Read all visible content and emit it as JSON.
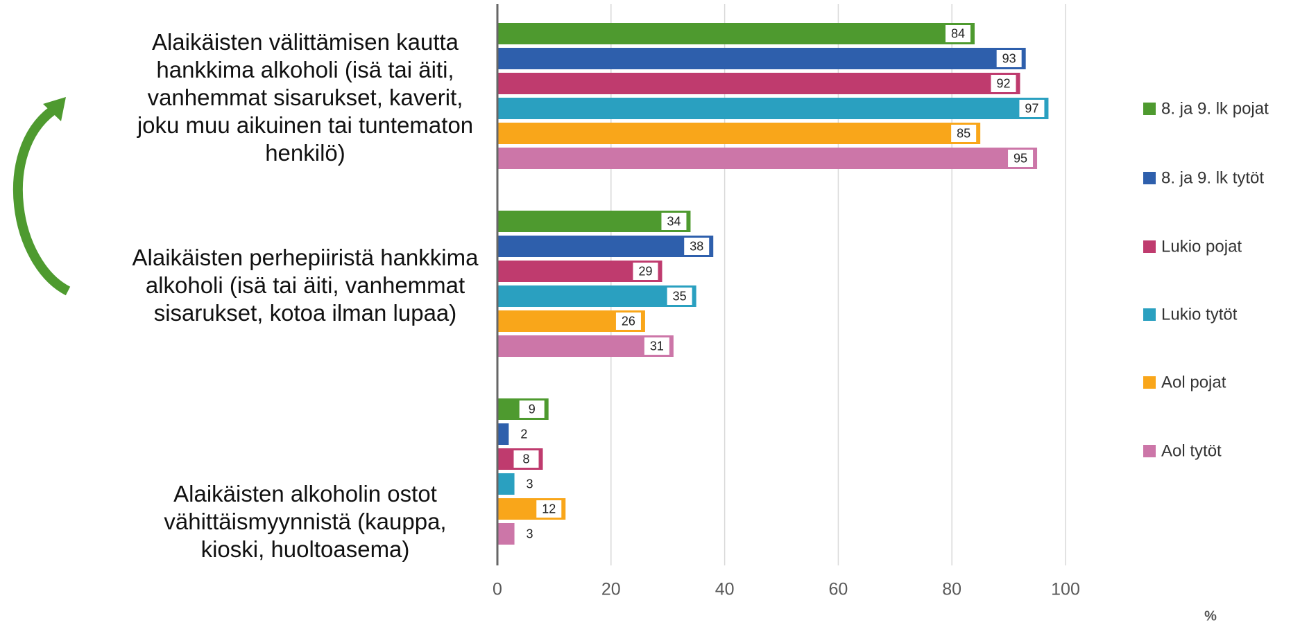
{
  "chart_data": {
    "type": "bar",
    "orientation": "horizontal",
    "categories": [
      "Alaikäisten välittämisen kautta hankkima alkoholi (isä tai äiti, vanhemmat sisarukset, kaverit, joku muu aikuinen tai tuntematon henkilö)",
      "Alaikäisten perhepiiristä hankkima alkoholi (isä tai äiti, vanhemmat sisarukset, kotoa ilman lupaa)",
      "Alaikäisten alkoholin ostot vähittäismyynnistä (kauppa, kioski, huoltoasema)"
    ],
    "series": [
      {
        "name": "8. ja 9. lk pojat",
        "color": "#4e9a2f",
        "values": [
          84,
          34,
          9
        ]
      },
      {
        "name": "8. ja 9. lk tytöt",
        "color": "#2e5fac",
        "values": [
          93,
          38,
          2
        ]
      },
      {
        "name": "Lukio pojat",
        "color": "#bf3b6e",
        "values": [
          92,
          29,
          8
        ]
      },
      {
        "name": "Lukio tytöt",
        "color": "#2aa0c0",
        "values": [
          97,
          35,
          3
        ]
      },
      {
        "name": "Aol pojat",
        "color": "#f9a61a",
        "values": [
          85,
          26,
          12
        ]
      },
      {
        "name": "Aol tytöt",
        "color": "#cc76a8",
        "values": [
          95,
          31,
          3
        ]
      }
    ],
    "xlim": [
      0,
      100
    ],
    "xticks": [
      0,
      20,
      40,
      60,
      80,
      100
    ],
    "xlabel": "%",
    "grid": true,
    "legend": "right"
  }
}
